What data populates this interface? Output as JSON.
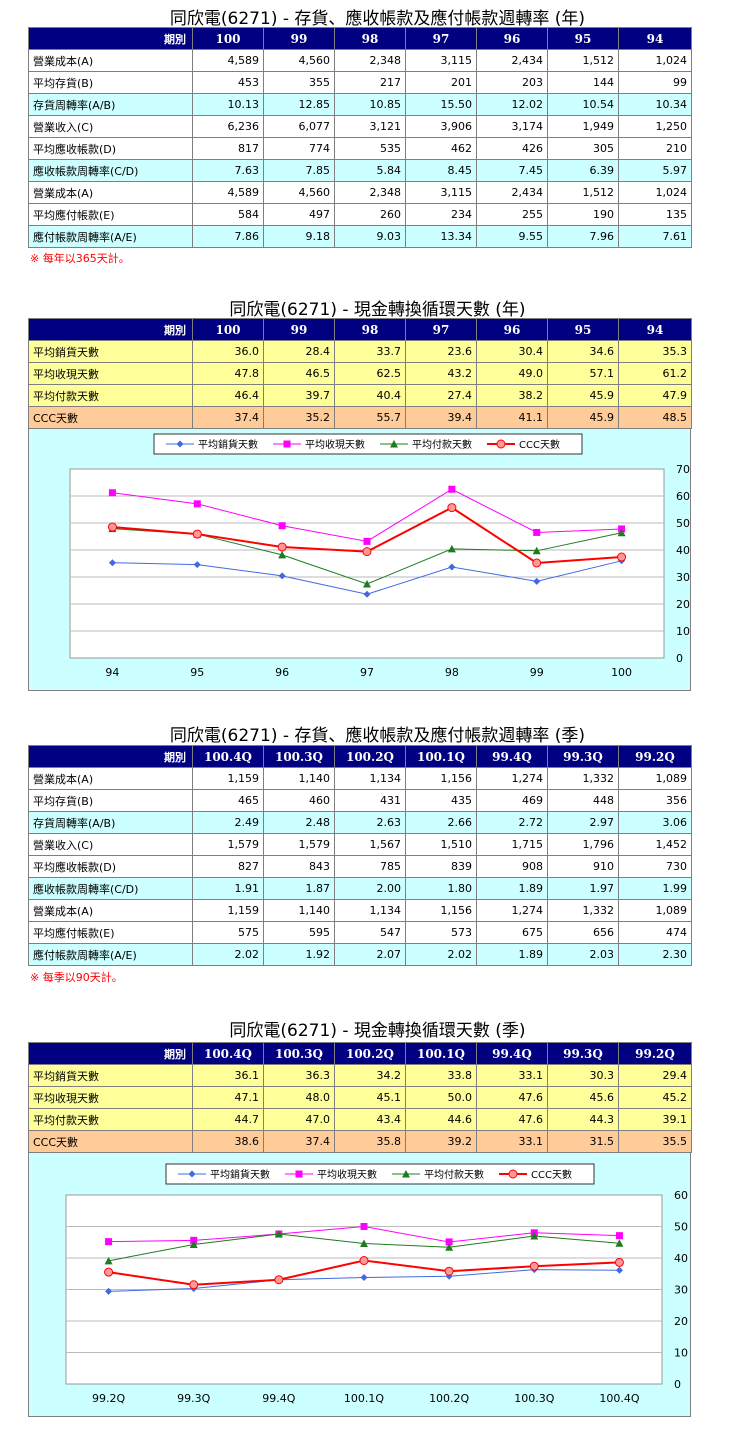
{
  "sections": {
    "annual_turnover": {
      "title": "同欣電(6271) -  存貨、應收帳款及應付帳款週轉率 (年)",
      "corner": "期別",
      "columns": [
        "100",
        "99",
        "98",
        "97",
        "96",
        "95",
        "94"
      ],
      "rows": [
        {
          "label": "營業成本(A)",
          "values": [
            "4,589",
            "4,560",
            "2,348",
            "3,115",
            "2,434",
            "1,512",
            "1,024"
          ],
          "style": "w"
        },
        {
          "label": "平均存貨(B)",
          "values": [
            "453",
            "355",
            "217",
            "201",
            "203",
            "144",
            "99"
          ],
          "style": "w"
        },
        {
          "label": "存貨周轉率(A/B)",
          "values": [
            "10.13",
            "12.85",
            "10.85",
            "15.50",
            "12.02",
            "10.54",
            "10.34"
          ],
          "style": "c"
        },
        {
          "label": "營業收入(C)",
          "values": [
            "6,236",
            "6,077",
            "3,121",
            "3,906",
            "3,174",
            "1,949",
            "1,250"
          ],
          "style": "w"
        },
        {
          "label": "平均應收帳款(D)",
          "values": [
            "817",
            "774",
            "535",
            "462",
            "426",
            "305",
            "210"
          ],
          "style": "w"
        },
        {
          "label": "應收帳款周轉率(C/D)",
          "values": [
            "7.63",
            "7.85",
            "5.84",
            "8.45",
            "7.45",
            "6.39",
            "5.97"
          ],
          "style": "c"
        },
        {
          "label": "營業成本(A)",
          "values": [
            "4,589",
            "4,560",
            "2,348",
            "3,115",
            "2,434",
            "1,512",
            "1,024"
          ],
          "style": "w"
        },
        {
          "label": "平均應付帳款(E)",
          "values": [
            "584",
            "497",
            "260",
            "234",
            "255",
            "190",
            "135"
          ],
          "style": "w"
        },
        {
          "label": "應付帳款周轉率(A/E)",
          "values": [
            "7.86",
            "9.18",
            "9.03",
            "13.34",
            "9.55",
            "7.96",
            "7.61"
          ],
          "style": "c"
        }
      ],
      "note": "※ 每年以365天計。"
    },
    "annual_ccc": {
      "title": "同欣電(6271) -  現金轉換循環天數 (年)",
      "corner": "期別",
      "columns": [
        "100",
        "99",
        "98",
        "97",
        "96",
        "95",
        "94"
      ],
      "rows": [
        {
          "label": "平均銷貨天數",
          "values": [
            "36.0",
            "28.4",
            "33.7",
            "23.6",
            "30.4",
            "34.6",
            "35.3"
          ],
          "style": "y"
        },
        {
          "label": "平均收現天數",
          "values": [
            "47.8",
            "46.5",
            "62.5",
            "43.2",
            "49.0",
            "57.1",
            "61.2"
          ],
          "style": "y"
        },
        {
          "label": "平均付款天數",
          "values": [
            "46.4",
            "39.7",
            "40.4",
            "27.4",
            "38.2",
            "45.9",
            "47.9"
          ],
          "style": "y"
        },
        {
          "label": "CCC天數",
          "values": [
            "37.4",
            "35.2",
            "55.7",
            "39.4",
            "41.1",
            "45.9",
            "48.5"
          ],
          "style": "o"
        }
      ]
    },
    "quarterly_turnover": {
      "title": "同欣電(6271) -  存貨、應收帳款及應付帳款週轉率 (季)",
      "corner": "期別",
      "columns": [
        "100.4Q",
        "100.3Q",
        "100.2Q",
        "100.1Q",
        "99.4Q",
        "99.3Q",
        "99.2Q"
      ],
      "rows": [
        {
          "label": "營業成本(A)",
          "values": [
            "1,159",
            "1,140",
            "1,134",
            "1,156",
            "1,274",
            "1,332",
            "1,089"
          ],
          "style": "w"
        },
        {
          "label": "平均存貨(B)",
          "values": [
            "465",
            "460",
            "431",
            "435",
            "469",
            "448",
            "356"
          ],
          "style": "w"
        },
        {
          "label": "存貨周轉率(A/B)",
          "values": [
            "2.49",
            "2.48",
            "2.63",
            "2.66",
            "2.72",
            "2.97",
            "3.06"
          ],
          "style": "c"
        },
        {
          "label": "營業收入(C)",
          "values": [
            "1,579",
            "1,579",
            "1,567",
            "1,510",
            "1,715",
            "1,796",
            "1,452"
          ],
          "style": "w"
        },
        {
          "label": "平均應收帳款(D)",
          "values": [
            "827",
            "843",
            "785",
            "839",
            "908",
            "910",
            "730"
          ],
          "style": "w"
        },
        {
          "label": "應收帳款周轉率(C/D)",
          "values": [
            "1.91",
            "1.87",
            "2.00",
            "1.80",
            "1.89",
            "1.97",
            "1.99"
          ],
          "style": "c"
        },
        {
          "label": "營業成本(A)",
          "values": [
            "1,159",
            "1,140",
            "1,134",
            "1,156",
            "1,274",
            "1,332",
            "1,089"
          ],
          "style": "w"
        },
        {
          "label": "平均應付帳款(E)",
          "values": [
            "575",
            "595",
            "547",
            "573",
            "675",
            "656",
            "474"
          ],
          "style": "w"
        },
        {
          "label": "應付帳款周轉率(A/E)",
          "values": [
            "2.02",
            "1.92",
            "2.07",
            "2.02",
            "1.89",
            "2.03",
            "2.30"
          ],
          "style": "c"
        }
      ],
      "note": "※ 每季以90天計。"
    },
    "quarterly_ccc": {
      "title": "同欣電(6271) -  現金轉換循環天數 (季)",
      "corner": "期別",
      "columns": [
        "100.4Q",
        "100.3Q",
        "100.2Q",
        "100.1Q",
        "99.4Q",
        "99.3Q",
        "99.2Q"
      ],
      "rows": [
        {
          "label": "平均銷貨天數",
          "values": [
            "36.1",
            "36.3",
            "34.2",
            "33.8",
            "33.1",
            "30.3",
            "29.4"
          ],
          "style": "y"
        },
        {
          "label": "平均收現天數",
          "values": [
            "47.1",
            "48.0",
            "45.1",
            "50.0",
            "47.6",
            "45.6",
            "45.2"
          ],
          "style": "y"
        },
        {
          "label": "平均付款天數",
          "values": [
            "44.7",
            "47.0",
            "43.4",
            "44.6",
            "47.6",
            "44.3",
            "39.1"
          ],
          "style": "y"
        },
        {
          "label": "CCC天數",
          "values": [
            "38.6",
            "37.4",
            "35.8",
            "39.2",
            "33.1",
            "31.5",
            "35.5"
          ],
          "style": "o"
        }
      ]
    }
  },
  "chart_data": [
    {
      "type": "line",
      "categories": [
        "94",
        "95",
        "96",
        "97",
        "98",
        "99",
        "100"
      ],
      "ylim": [
        0,
        70
      ],
      "yticks": [
        0,
        10,
        20,
        30,
        40,
        50,
        60,
        70
      ],
      "grid": true,
      "legend_position": "top",
      "series": [
        {
          "name": "平均銷貨天數",
          "values": [
            35.3,
            34.6,
            30.4,
            23.6,
            33.7,
            28.4,
            36.0
          ],
          "color": "#4169e1",
          "marker": "diamond"
        },
        {
          "name": "平均收現天數",
          "values": [
            61.2,
            57.1,
            49.0,
            43.2,
            62.5,
            46.5,
            47.8
          ],
          "color": "#ff00ff",
          "marker": "square"
        },
        {
          "name": "平均付款天數",
          "values": [
            47.9,
            45.9,
            38.2,
            27.4,
            40.4,
            39.7,
            46.4
          ],
          "color": "#1e7b1e",
          "marker": "triangle"
        },
        {
          "name": "CCC天數",
          "values": [
            48.5,
            45.9,
            41.1,
            39.4,
            55.7,
            35.2,
            37.4
          ],
          "color": "#ff0000",
          "marker": "circle"
        }
      ]
    },
    {
      "type": "line",
      "categories": [
        "99.2Q",
        "99.3Q",
        "99.4Q",
        "100.1Q",
        "100.2Q",
        "100.3Q",
        "100.4Q"
      ],
      "ylim": [
        0,
        60
      ],
      "yticks": [
        0,
        10,
        20,
        30,
        40,
        50,
        60
      ],
      "grid": true,
      "legend_position": "top",
      "series": [
        {
          "name": "平均銷貨天數",
          "values": [
            29.4,
            30.3,
            33.1,
            33.8,
            34.2,
            36.3,
            36.1
          ],
          "color": "#4169e1",
          "marker": "diamond"
        },
        {
          "name": "平均收現天數",
          "values": [
            45.2,
            45.6,
            47.6,
            50.0,
            45.1,
            48.0,
            47.1
          ],
          "color": "#ff00ff",
          "marker": "square"
        },
        {
          "name": "平均付款天數",
          "values": [
            39.1,
            44.3,
            47.6,
            44.6,
            43.4,
            47.0,
            44.7
          ],
          "color": "#1e7b1e",
          "marker": "triangle"
        },
        {
          "name": "CCC天數",
          "values": [
            35.5,
            31.5,
            33.1,
            39.2,
            35.8,
            37.4,
            38.6
          ],
          "color": "#ff0000",
          "marker": "circle"
        }
      ]
    }
  ]
}
